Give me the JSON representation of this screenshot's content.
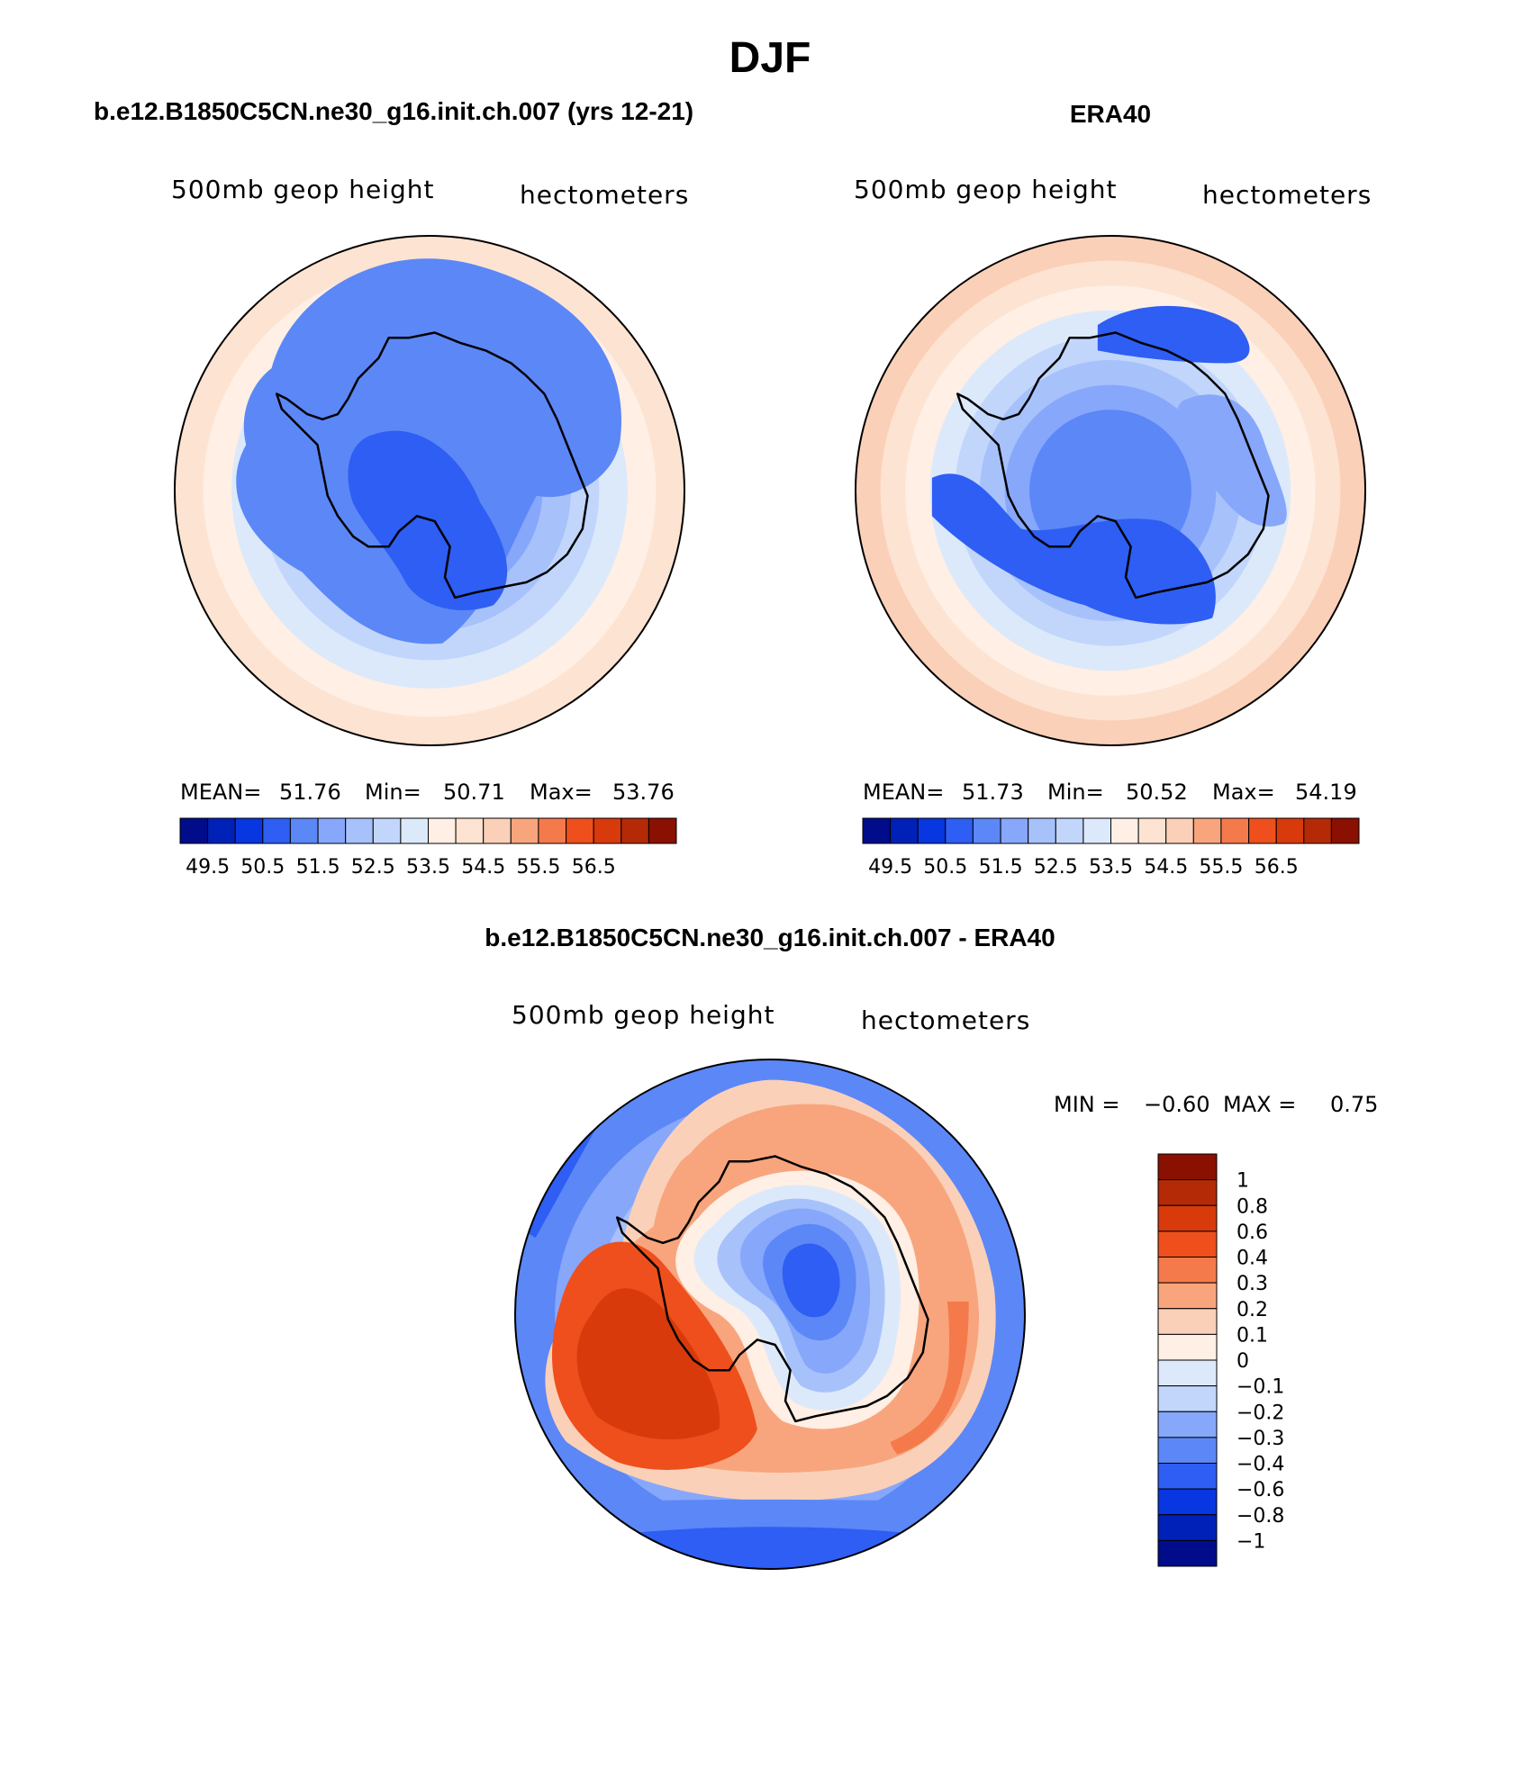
{
  "title": "DJF",
  "panels": [
    {
      "heading": "b.e12.B1850C5CN.ne30_g16.init.ch.007 (yrs 12-21)",
      "field_label": "500mb geop height",
      "units": "hectometers",
      "stats": {
        "mean_label": "MEAN=",
        "mean": "51.76",
        "min_label": "Min=",
        "min": "50.71",
        "max_label": "Max=",
        "max": "53.76"
      },
      "rings": [
        "#fde3d2",
        "#ffefe4",
        "#dce9fb",
        "#c2d6fc",
        "#a7c1fb",
        "#87a7fb",
        "#5c87f7"
      ],
      "blobs": [
        {
          "color": "#5c87f7",
          "shape": "continent"
        },
        {
          "color": "#2e5ef3",
          "shape": "trough_model"
        }
      ]
    },
    {
      "heading": "ERA40",
      "field_label": "500mb geop height",
      "units": "hectometers",
      "stats": {
        "mean_label": "MEAN=",
        "mean": "51.73",
        "min_label": "Min=",
        "min": "50.52",
        "max_label": "Max=",
        "max": "54.19"
      },
      "rings": [
        "#fbd0b8",
        "#fde3d2",
        "#ffefe4",
        "#dce9fb",
        "#c2d6fc",
        "#a7c1fb",
        "#87a7fb",
        "#5c87f7"
      ],
      "blobs": [
        {
          "color": "#87a7fb",
          "shape": "east_high"
        },
        {
          "color": "#2e5ef3",
          "shape": "trough_era"
        },
        {
          "color": "#2e5ef3",
          "shape": "north_low"
        }
      ]
    }
  ],
  "colorbar": {
    "colors": [
      "#000c8a",
      "#0021b8",
      "#0836e0",
      "#2e5ef3",
      "#5c87f7",
      "#87a7fb",
      "#a7c1fb",
      "#c2d6fc",
      "#dce9fb",
      "#ffefe4",
      "#fde3d2",
      "#fbd0b8",
      "#f8a57e",
      "#f57a4b",
      "#ee4f1c",
      "#d83a0c",
      "#b52a06",
      "#8a1001"
    ],
    "labels": [
      "49.5",
      "50.5",
      "51.5",
      "52.5",
      "53.5",
      "54.5",
      "55.5",
      "56.5"
    ]
  },
  "difference": {
    "heading": "b.e12.B1850C5CN.ne30_g16.init.ch.007 - ERA40",
    "field_label": "500mb geop height",
    "units": "hectometers",
    "stats": {
      "min_label": "MIN =",
      "min": "−0.60",
      "max_label": "MAX =",
      "max": "0.75"
    },
    "colorbar": {
      "colors": [
        "#8a1001",
        "#b52a06",
        "#d83a0c",
        "#ee4f1c",
        "#f57a4b",
        "#f8a57e",
        "#fbd0b8",
        "#ffefe4",
        "#dce9fb",
        "#c2d6fc",
        "#87a7fb",
        "#5c87f7",
        "#2e5ef3",
        "#0836e0",
        "#0021b8",
        "#000c8a"
      ],
      "labels": [
        "1",
        "0.8",
        "0.6",
        "0.4",
        "0.3",
        "0.2",
        "0.1",
        "0",
        "−0.1",
        "−0.2",
        "−0.3",
        "−0.4",
        "−0.6",
        "−0.8",
        "−1"
      ]
    },
    "rings": [
      "#5c87f7",
      "#87a7fb",
      "#a7c1fb",
      "#dce9fb",
      "#ffefe4"
    ],
    "blobs": [
      {
        "color": "#fbd0b8",
        "shape": "pos_wide"
      },
      {
        "color": "#f8a57e",
        "shape": "pos_mid"
      },
      {
        "color": "#f57a4b",
        "shape": "pos_ring"
      },
      {
        "color": "#f8a57e",
        "shape": "pos_inner"
      },
      {
        "color": "#ee4f1c",
        "shape": "west_max_outer"
      },
      {
        "color": "#d83a0c",
        "shape": "west_max_inner"
      },
      {
        "color": "#ffefe4",
        "shape": "neg_0"
      },
      {
        "color": "#dce9fb",
        "shape": "neg_1"
      },
      {
        "color": "#a7c1fb",
        "shape": "neg_2"
      },
      {
        "color": "#87a7fb",
        "shape": "neg_3"
      },
      {
        "color": "#5c87f7",
        "shape": "neg_4"
      },
      {
        "color": "#2e5ef3",
        "shape": "neg_5"
      },
      {
        "color": "#2e5ef3",
        "shape": "nw_edge"
      },
      {
        "color": "#5c87f7",
        "shape": "south_edge_outer"
      },
      {
        "color": "#2e5ef3",
        "shape": "south_edge_inner"
      }
    ]
  }
}
